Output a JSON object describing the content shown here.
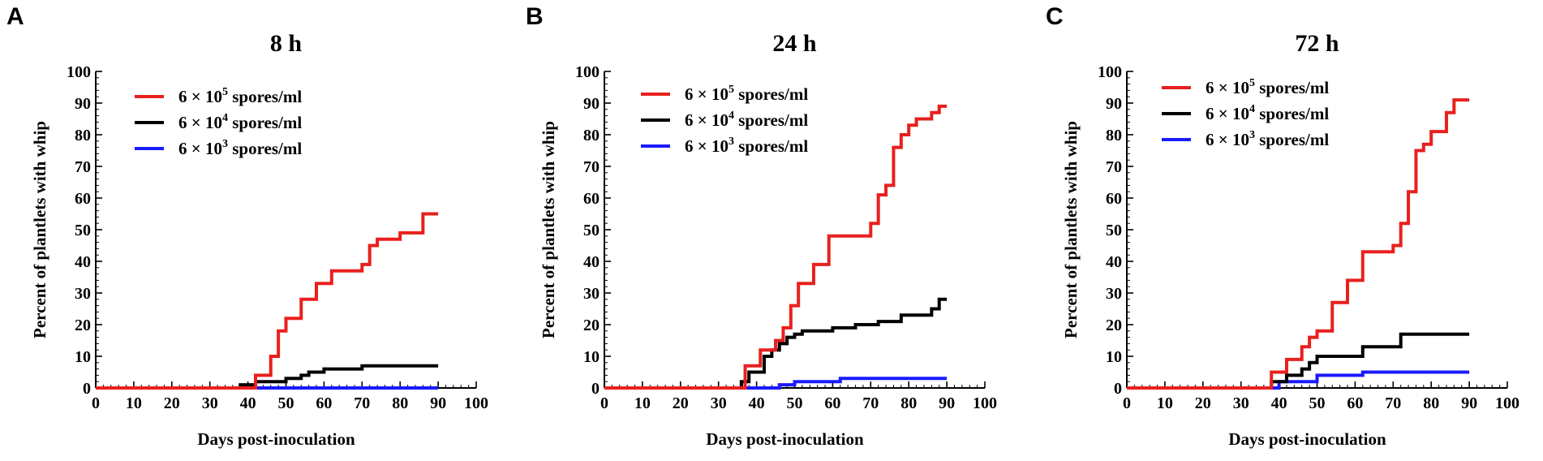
{
  "chart_data": [
    {
      "type": "line",
      "step": true,
      "panel": "A",
      "title": "8 h",
      "xlabel": "Days post-inoculation",
      "ylabel": "Percent of plantlets with whip",
      "xlim": [
        0,
        100
      ],
      "ylim": [
        0,
        100
      ],
      "xticks": [
        "0",
        "10",
        "20",
        "30",
        "40",
        "50",
        "60",
        "70",
        "80",
        "90",
        "100"
      ],
      "yticks": [
        "0",
        "10",
        "20",
        "30",
        "40",
        "50",
        "60",
        "70",
        "80",
        "90",
        "100"
      ],
      "legend_position": "top-left",
      "series": [
        {
          "name": "6 × 10^5 spores/ml",
          "label_base": "6 × 10",
          "label_exp": "5",
          "label_unit": " spores/ml",
          "color": "#e8201d",
          "x": [
            0,
            42,
            46,
            48,
            50,
            54,
            58,
            62,
            70,
            72,
            74,
            80,
            86,
            90
          ],
          "y": [
            0,
            4,
            10,
            18,
            22,
            28,
            33,
            37,
            39,
            45,
            47,
            49,
            55,
            55
          ]
        },
        {
          "name": "6 × 10^4 spores/ml",
          "label_base": "6 × 10",
          "label_exp": "4",
          "label_unit": " spores/ml",
          "color": "#000000",
          "x": [
            0,
            38,
            42,
            50,
            54,
            56,
            60,
            70,
            90
          ],
          "y": [
            0,
            1,
            2,
            3,
            4,
            5,
            6,
            7,
            7
          ]
        },
        {
          "name": "6 × 10^3 spores/ml",
          "label_base": "6 × 10",
          "label_exp": "3",
          "label_unit": " spores/ml",
          "color": "#1a1aff",
          "x": [
            0,
            90
          ],
          "y": [
            0,
            0
          ]
        }
      ]
    },
    {
      "type": "line",
      "step": true,
      "panel": "B",
      "title": "24 h",
      "xlabel": "Days post-inoculation",
      "ylabel": "Percent of plantlets with whip",
      "xlim": [
        0,
        100
      ],
      "ylim": [
        0,
        100
      ],
      "xticks": [
        "0",
        "10",
        "20",
        "30",
        "40",
        "50",
        "60",
        "70",
        "80",
        "90",
        "100"
      ],
      "yticks": [
        "0",
        "10",
        "20",
        "30",
        "40",
        "50",
        "60",
        "70",
        "80",
        "90",
        "100"
      ],
      "legend_position": "top-left",
      "series": [
        {
          "name": "6 × 10^5 spores/ml",
          "label_base": "6 × 10",
          "label_exp": "5",
          "label_unit": " spores/ml",
          "color": "#e8201d",
          "x": [
            0,
            37,
            41,
            45,
            47,
            49,
            51,
            55,
            59,
            63,
            70,
            72,
            74,
            76,
            78,
            80,
            82,
            86,
            88,
            90
          ],
          "y": [
            0,
            7,
            12,
            15,
            19,
            26,
            33,
            39,
            48,
            48,
            52,
            61,
            64,
            76,
            80,
            83,
            85,
            87,
            89,
            89
          ]
        },
        {
          "name": "6 × 10^4 spores/ml",
          "label_base": "6 × 10",
          "label_exp": "4",
          "label_unit": " spores/ml",
          "color": "#000000",
          "x": [
            0,
            36,
            38,
            42,
            44,
            46,
            48,
            50,
            52,
            56,
            60,
            66,
            72,
            78,
            86,
            88,
            90
          ],
          "y": [
            0,
            2,
            5,
            10,
            12,
            14,
            16,
            17,
            18,
            18,
            19,
            20,
            21,
            23,
            25,
            28,
            28
          ]
        },
        {
          "name": "6 × 10^3 spores/ml",
          "label_base": "6 × 10",
          "label_exp": "3",
          "label_unit": " spores/ml",
          "color": "#1a1aff",
          "x": [
            0,
            46,
            50,
            62,
            90
          ],
          "y": [
            0,
            1,
            2,
            3,
            3
          ]
        }
      ]
    },
    {
      "type": "line",
      "step": true,
      "panel": "C",
      "title": "72 h",
      "xlabel": "Days post-inoculation",
      "ylabel": "Percent of plantlets with whip",
      "xlim": [
        0,
        100
      ],
      "ylim": [
        0,
        100
      ],
      "xticks": [
        "0",
        "10",
        "20",
        "30",
        "40",
        "50",
        "60",
        "70",
        "80",
        "90",
        "100"
      ],
      "yticks": [
        "0",
        "10",
        "20",
        "30",
        "40",
        "50",
        "60",
        "70",
        "80",
        "90",
        "100"
      ],
      "legend_position": "top-left",
      "series": [
        {
          "name": "6 × 10^5 spores/ml",
          "label_base": "6 × 10",
          "label_exp": "5",
          "label_unit": " spores/ml",
          "color": "#e8201d",
          "x": [
            0,
            38,
            42,
            46,
            48,
            50,
            54,
            58,
            62,
            70,
            72,
            74,
            76,
            78,
            80,
            84,
            86,
            90
          ],
          "y": [
            0,
            5,
            9,
            13,
            16,
            18,
            27,
            34,
            43,
            45,
            52,
            62,
            75,
            77,
            81,
            87,
            91,
            91
          ]
        },
        {
          "name": "6 × 10^4 spores/ml",
          "label_base": "6 × 10",
          "label_exp": "4",
          "label_unit": " spores/ml",
          "color": "#000000",
          "x": [
            0,
            38,
            42,
            46,
            48,
            50,
            62,
            72,
            90
          ],
          "y": [
            0,
            2,
            4,
            6,
            8,
            10,
            13,
            17,
            17
          ]
        },
        {
          "name": "6 × 10^3 spores/ml",
          "label_base": "6 × 10",
          "label_exp": "3",
          "label_unit": " spores/ml",
          "color": "#1a1aff",
          "x": [
            0,
            40,
            50,
            62,
            90
          ],
          "y": [
            0,
            2,
            4,
            5,
            5
          ]
        }
      ]
    }
  ]
}
